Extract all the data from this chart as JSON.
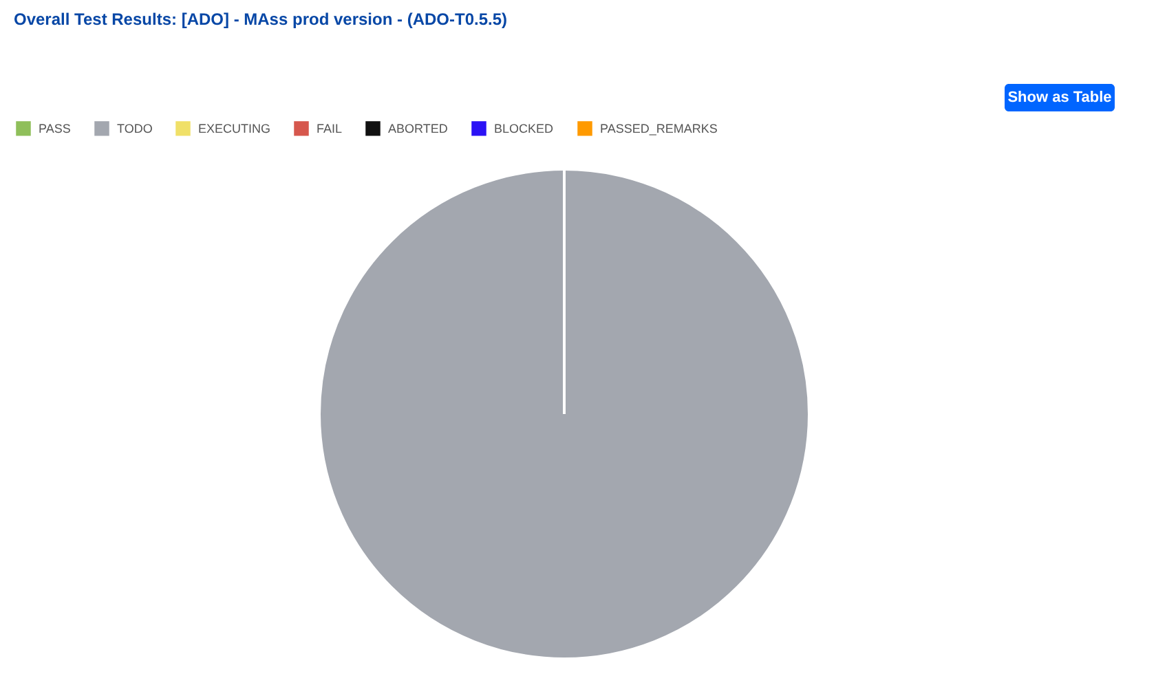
{
  "chart_data": {
    "type": "pie",
    "title": "Overall Test Results: [ADO] - MAss prod version - (ADO-T0.5.5)",
    "categories": [
      "PASS",
      "TODO",
      "EXECUTING",
      "FAIL",
      "ABORTED",
      "BLOCKED",
      "PASSED_REMARKS"
    ],
    "values": [
      0,
      100,
      0,
      0,
      0,
      0,
      0
    ],
    "colors": [
      "#8fbf5a",
      "#a3a7af",
      "#f0e068",
      "#d6574d",
      "#111111",
      "#2b12f5",
      "#ff9a00"
    ],
    "legend": "top",
    "annotations": [
      "Show as Table"
    ]
  }
}
